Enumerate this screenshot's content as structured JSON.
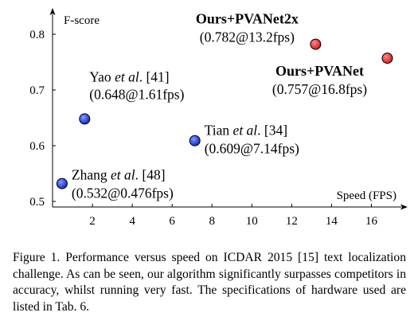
{
  "chart_data": {
    "type": "scatter",
    "xlabel": "Speed (FPS)",
    "ylabel": "F-score",
    "xlim": [
      0,
      17.5
    ],
    "ylim": [
      0.49,
      0.83
    ],
    "xticks": [
      2,
      4,
      6,
      8,
      10,
      12,
      14,
      16
    ],
    "yticks": [
      0.5,
      0.6,
      0.7,
      0.8
    ],
    "grid": false,
    "points": [
      {
        "x": 0.476,
        "y": 0.532,
        "color": "#1133dd",
        "bold": false,
        "name_parts": [
          {
            "t": "Zhang ",
            "i": false
          },
          {
            "t": "et al",
            "i": true
          },
          {
            "t": ". [48]",
            "i": false
          }
        ],
        "value_label": "(0.532@0.476fps)"
      },
      {
        "x": 1.61,
        "y": 0.648,
        "color": "#1133dd",
        "bold": false,
        "name_parts": [
          {
            "t": "Yao ",
            "i": false
          },
          {
            "t": "et al",
            "i": true
          },
          {
            "t": ". [41]",
            "i": false
          }
        ],
        "value_label": "(0.648@1.61fps)"
      },
      {
        "x": 7.14,
        "y": 0.609,
        "color": "#1133dd",
        "bold": false,
        "name_parts": [
          {
            "t": "Tian ",
            "i": false
          },
          {
            "t": "et al",
            "i": true
          },
          {
            "t": ". [34]",
            "i": false
          }
        ],
        "value_label": "(0.609@7.14fps)"
      },
      {
        "x": 13.2,
        "y": 0.782,
        "color": "#e02020",
        "bold": true,
        "name_parts": [
          {
            "t": "Ours+PVANet2x",
            "i": false
          }
        ],
        "value_label": "(0.782@13.2fps)"
      },
      {
        "x": 16.8,
        "y": 0.757,
        "color": "#e02020",
        "bold": true,
        "name_parts": [
          {
            "t": "Ours+PVANet",
            "i": false
          }
        ],
        "value_label": "(0.757@16.8fps)"
      }
    ]
  },
  "caption": "Figure 1. Performance versus speed on ICDAR 2015 [15] text localization challenge. As can be seen, our algorithm significantly surpasses competitors in accuracy, whilst running very fast. The specifications of hardware used are listed in Tab. 6."
}
